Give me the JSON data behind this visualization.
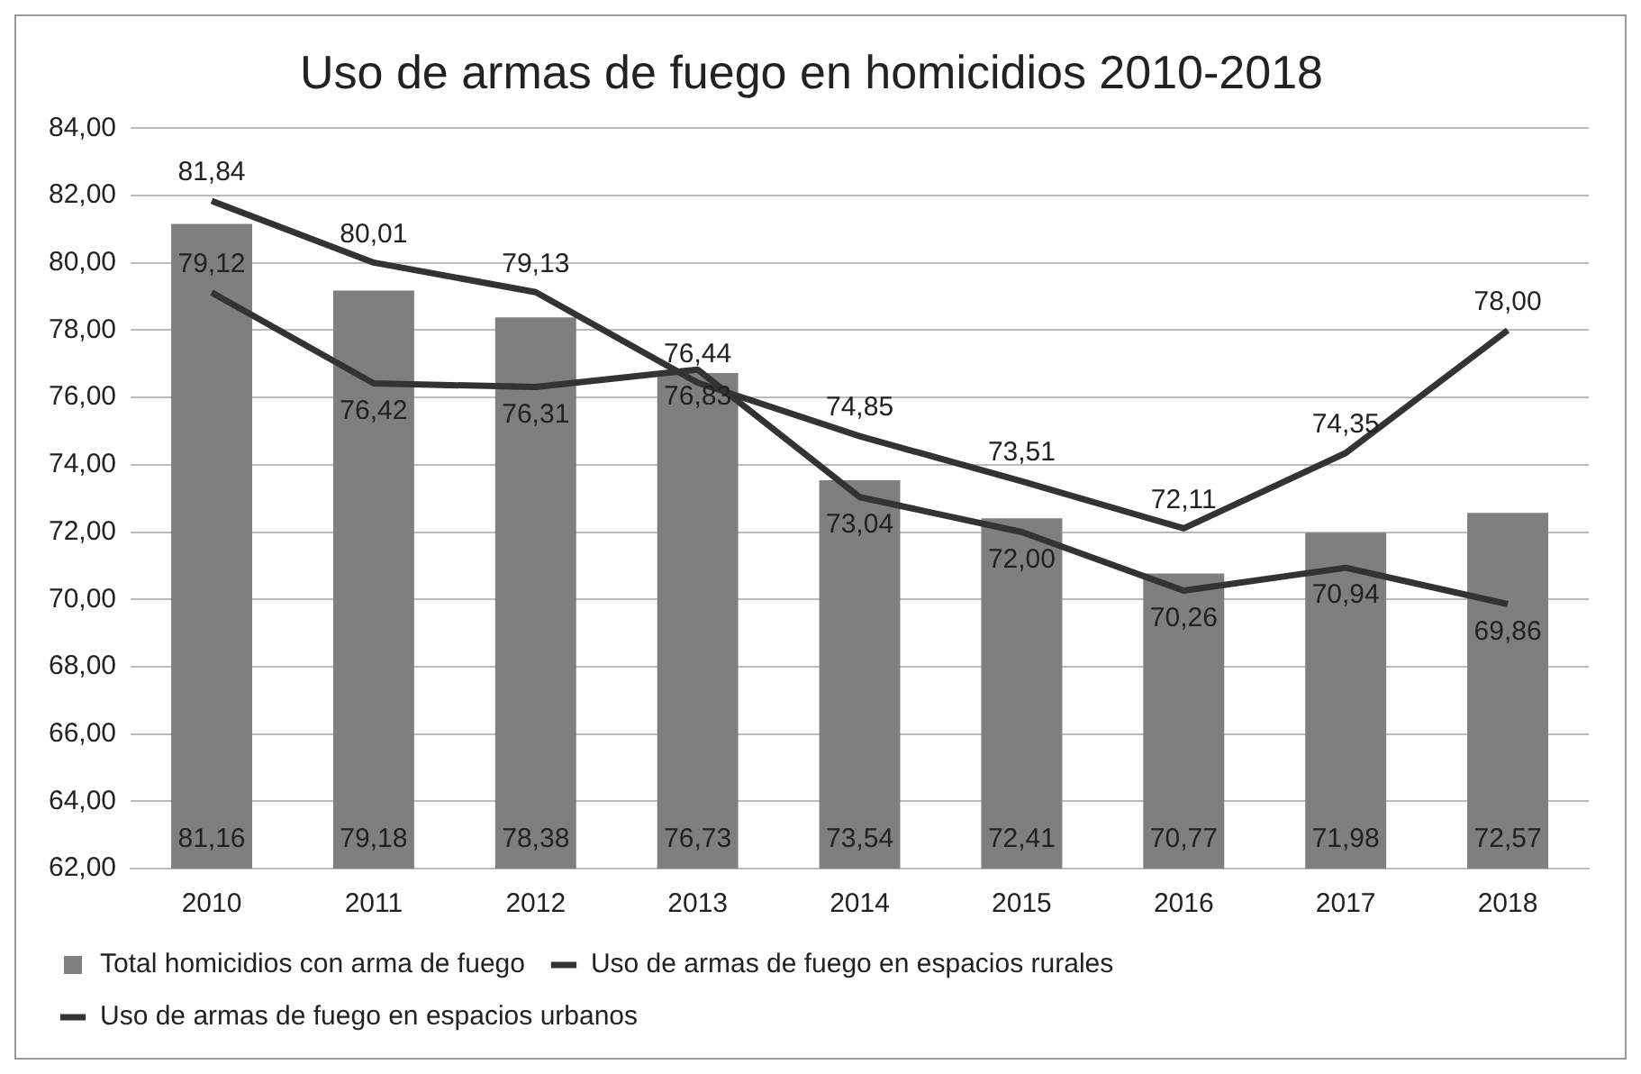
{
  "chart_data": {
    "type": "bar",
    "title": "Uso de armas de fuego en homicidios 2010-2018",
    "categories": [
      "2010",
      "2011",
      "2012",
      "2013",
      "2014",
      "2015",
      "2016",
      "2017",
      "2018"
    ],
    "series": [
      {
        "name": "Total homicidios con arma de fuego",
        "color": "#7f7f7f",
        "values": [
          81.16,
          79.18,
          78.38,
          76.73,
          73.54,
          72.41,
          70.77,
          71.98,
          72.57
        ],
        "value_labels": [
          "81,16",
          "79,18",
          "78,38",
          "76,73",
          "73,54",
          "72,41",
          "70,77",
          "71,98",
          "72,57"
        ]
      },
      {
        "name": "Uso de armas de fuego en espacios rurales",
        "type": "line",
        "color": "#333333",
        "values": [
          81.84,
          80.01,
          79.13,
          76.44,
          74.85,
          73.51,
          72.11,
          74.35,
          78.0
        ],
        "value_labels": [
          "81,84",
          "80,01",
          "79,13",
          "76,44",
          "74,85",
          "73,51",
          "72,11",
          "74,35",
          "78,00"
        ]
      },
      {
        "name": "Uso de armas de fuego en espacios urbanos",
        "type": "line",
        "color": "#333333",
        "values": [
          79.12,
          76.42,
          76.31,
          76.83,
          73.04,
          72.0,
          70.26,
          70.94,
          69.86
        ],
        "value_labels": [
          "79,12",
          "76,42",
          "76,31",
          "76,83",
          "73,04",
          "72,00",
          "70,26",
          "70,94",
          "69,86"
        ]
      }
    ],
    "ylim": [
      62,
      84
    ],
    "yticks": [
      {
        "value": 62,
        "label": "62,00"
      },
      {
        "value": 64,
        "label": "64,00"
      },
      {
        "value": 66,
        "label": "66,00"
      },
      {
        "value": 68,
        "label": "68,00"
      },
      {
        "value": 70,
        "label": "70,00"
      },
      {
        "value": 72,
        "label": "72,00"
      },
      {
        "value": 74,
        "label": "74,00"
      },
      {
        "value": 76,
        "label": "76,00"
      },
      {
        "value": 78,
        "label": "78,00"
      },
      {
        "value": 80,
        "label": "80,00"
      },
      {
        "value": 82,
        "label": "82,00"
      },
      {
        "value": 84,
        "label": "84,00"
      }
    ],
    "grid": "y",
    "legend": "bottom",
    "marker": "none",
    "line_style": "solid"
  }
}
